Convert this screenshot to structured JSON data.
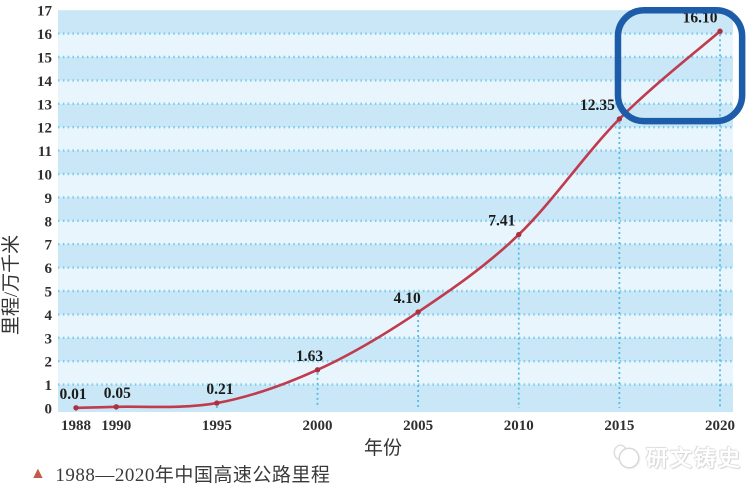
{
  "chart_data": {
    "type": "line",
    "x": [
      1988,
      1990,
      1995,
      2000,
      2005,
      2010,
      2015,
      2020
    ],
    "values": [
      0.01,
      0.05,
      0.21,
      1.63,
      4.1,
      7.41,
      12.35,
      16.1
    ],
    "point_labels": [
      "0.01",
      "0.05",
      "0.21",
      "1.63",
      "4.10",
      "7.41",
      "12.35",
      "16.10"
    ],
    "x_ticks": [
      1988,
      1990,
      1995,
      2000,
      2005,
      2010,
      2015,
      2020
    ],
    "xlabel": "年份",
    "ylabel": "里程/万千米",
    "ylim": [
      0,
      17
    ],
    "xlim": [
      1988,
      2020
    ],
    "grid": "horizontal dotted lines at each integer; dotted drop lines from points to x-axis",
    "legend": "none",
    "line_color": "#bf3b4d",
    "marker_color": "#ab3040",
    "band_colors": [
      "#c9e7f6",
      "#e8f5fc"
    ],
    "gridline_color": "#7fcdec",
    "dropline_color": "#55bce8",
    "highlight_box": {
      "year_from": 2014.93,
      "year_to": 2021.1,
      "value_from": 12.26,
      "value_to": 17.0,
      "color": "#1c5ca8"
    }
  },
  "caption": {
    "marker": "▲",
    "marker_color": "#c45a48",
    "text": "1988—2020年中国高速公路里程"
  },
  "watermark": {
    "text": "研文铸史",
    "logo": "panda-logo"
  }
}
